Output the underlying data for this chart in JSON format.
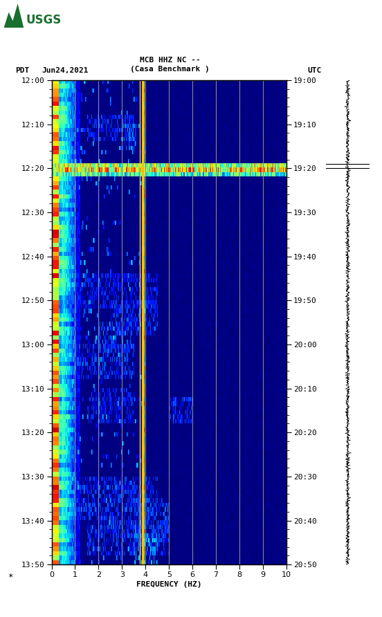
{
  "title_line1": "MCB HHZ NC --",
  "title_line2": "(Casa Benchmark )",
  "label_left": "PDT",
  "label_date": "Jun24,2021",
  "label_right": "UTC",
  "freq_label": "FREQUENCY (HZ)",
  "ytick_pdt": [
    "12:00",
    "12:10",
    "12:20",
    "12:30",
    "12:40",
    "12:50",
    "13:00",
    "13:10",
    "13:20",
    "13:30",
    "13:40",
    "13:50"
  ],
  "ytick_utc": [
    "19:00",
    "19:10",
    "19:20",
    "19:30",
    "19:40",
    "19:50",
    "20:00",
    "20:10",
    "20:20",
    "20:30",
    "20:40",
    "20:50"
  ],
  "background_color": "#ffffff",
  "colormap": "jet",
  "logo_color": "#1a6e2e",
  "gray_vlines": [
    1,
    2,
    3,
    4,
    5,
    6,
    7,
    8,
    9
  ],
  "gold_vline": 3.88,
  "gold_vline2": 3.75,
  "figsize": [
    5.52,
    8.92
  ],
  "dpi": 100
}
